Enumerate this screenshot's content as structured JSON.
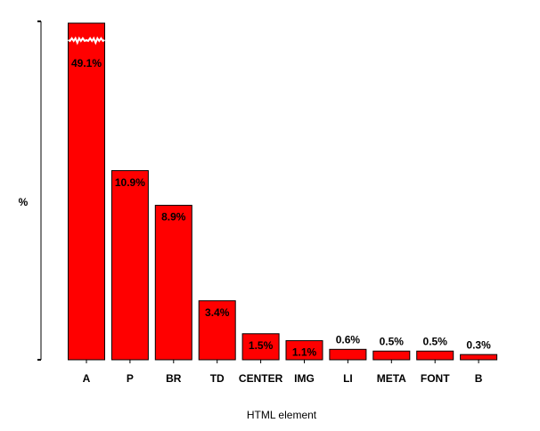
{
  "chart_data": {
    "type": "bar",
    "x_label": "HTML element",
    "y_label": "%",
    "categories": [
      "A",
      "P",
      "BR",
      "TD",
      "CENTER",
      "IMG",
      "LI",
      "META",
      "FONT",
      "B"
    ],
    "values": [
      49.1,
      10.9,
      8.9,
      3.4,
      1.5,
      1.1,
      0.6,
      0.5,
      0.5,
      0.3
    ],
    "value_labels": [
      "49.1%",
      "10.9%",
      "8.9%",
      "3.4%",
      "1.5%",
      "1.1%",
      "0.6%",
      "0.5%",
      "0.5%",
      "0.3%"
    ],
    "color": "#ff0000",
    "ylim": [
      0,
      19.5
    ]
  }
}
